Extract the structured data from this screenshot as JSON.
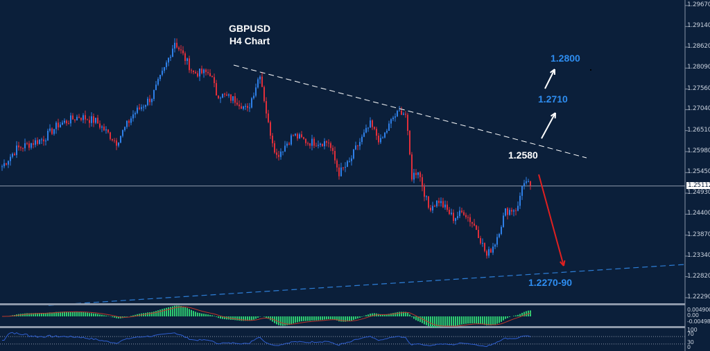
{
  "title": {
    "line1": "GBPUSD",
    "line2": "H4 Chart"
  },
  "annotations": {
    "target1": "1.2800",
    "target2": "1.2710",
    "pivot": "1.2580",
    "support": "1.2270-90"
  },
  "colors": {
    "background": "#0b1f3a",
    "bull": "#2f80e8",
    "bear": "#e02f3a",
    "macd_hist": "#2ecc71",
    "macd_signal": "#c0392b",
    "rsi": "#2f5fd0",
    "target": "#2e8df0"
  },
  "chart_data": {
    "type": "candlestick",
    "symbol": "GBPUSD",
    "timeframe": "H4",
    "ylim": [
      1.2229,
      1.2967
    ],
    "y_ticks": [
      "1.29670",
      "1.29140",
      "1.28620",
      "1.28090",
      "1.27560",
      "1.27040",
      "1.26510",
      "1.25980",
      "1.25450",
      "1.24930",
      "1.24400",
      "1.23870",
      "1.23340",
      "1.22820",
      "1.22290"
    ],
    "current_price": "1.25112",
    "approx_close_path": [
      [
        0,
        1.2561
      ],
      [
        7,
        1.2605
      ],
      [
        20,
        1.2631
      ],
      [
        27,
        1.2666
      ],
      [
        37,
        1.2687
      ],
      [
        45,
        1.2675
      ],
      [
        55,
        1.2622
      ],
      [
        63,
        1.2692
      ],
      [
        72,
        1.2736
      ],
      [
        78,
        1.2806
      ],
      [
        83,
        1.2876
      ],
      [
        87,
        1.2841
      ],
      [
        92,
        1.2797
      ],
      [
        100,
        1.2797
      ],
      [
        103,
        1.2745
      ],
      [
        113,
        1.2727
      ],
      [
        118,
        1.2701
      ],
      [
        124,
        1.2797
      ],
      [
        128,
        1.2666
      ],
      [
        132,
        1.2587
      ],
      [
        140,
        1.264
      ],
      [
        147,
        1.2622
      ],
      [
        157,
        1.2622
      ],
      [
        162,
        1.2544
      ],
      [
        167,
        1.257
      ],
      [
        170,
        1.2605
      ],
      [
        177,
        1.2666
      ],
      [
        182,
        1.2622
      ],
      [
        188,
        1.2684
      ],
      [
        192,
        1.2701
      ],
      [
        194,
        1.2692
      ],
      [
        197,
        1.2535
      ],
      [
        200,
        1.2552
      ],
      [
        205,
        1.2456
      ],
      [
        210,
        1.2474
      ],
      [
        217,
        1.243
      ],
      [
        222,
        1.2447
      ],
      [
        228,
        1.2404
      ],
      [
        233,
        1.2334
      ],
      [
        237,
        1.2369
      ],
      [
        242,
        1.2447
      ],
      [
        248,
        1.2456
      ],
      [
        250,
        1.2517
      ],
      [
        254,
        1.2512
      ]
    ],
    "trendlines": [
      {
        "style": "dashed",
        "color": "#ffffff"
      },
      {
        "style": "dashed",
        "color": "#2e7fd8"
      }
    ],
    "indicators": {
      "macd": {
        "ticks": [
          "0.004900",
          "0.00",
          "-0.00498"
        ]
      },
      "rsi": {
        "ticks": [
          "100",
          "70",
          "30",
          "0"
        ]
      }
    }
  }
}
